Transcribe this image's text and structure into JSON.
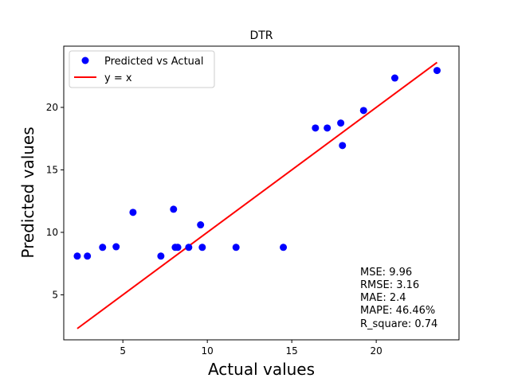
{
  "chart_data": {
    "type": "scatter",
    "title": "DTR",
    "xlabel": "Actual values",
    "ylabel": "Predicted values",
    "xlim": [
      1.5,
      24.9
    ],
    "ylim": [
      1.4,
      24.9
    ],
    "xticks": [
      5,
      10,
      15,
      20
    ],
    "yticks": [
      5,
      10,
      15,
      20
    ],
    "grid": false,
    "legend_position": "top-left",
    "series": [
      {
        "name": "Predicted vs Actual",
        "color": "#0000ff",
        "x": [
          2.3,
          2.9,
          3.8,
          4.6,
          5.6,
          7.25,
          8.0,
          8.1,
          8.25,
          8.9,
          9.6,
          9.7,
          11.7,
          14.5,
          16.4,
          17.1,
          17.9,
          18.0,
          19.25,
          21.1,
          23.6
        ],
        "y": [
          8.1,
          8.1,
          8.8,
          8.85,
          11.6,
          8.1,
          11.85,
          8.8,
          8.8,
          8.8,
          10.6,
          8.8,
          8.8,
          8.8,
          18.35,
          18.35,
          18.75,
          16.95,
          19.75,
          22.35,
          22.95
        ]
      },
      {
        "name": "y = x",
        "type": "line",
        "color": "#ff0000",
        "x": [
          2.3,
          23.6
        ],
        "y": [
          2.3,
          23.6
        ]
      }
    ],
    "annotations": [
      "MSE: 9.96",
      "RMSE: 3.16",
      "MAE: 2.4",
      "MAPE: 46.46%",
      "R_square: 0.74"
    ]
  }
}
